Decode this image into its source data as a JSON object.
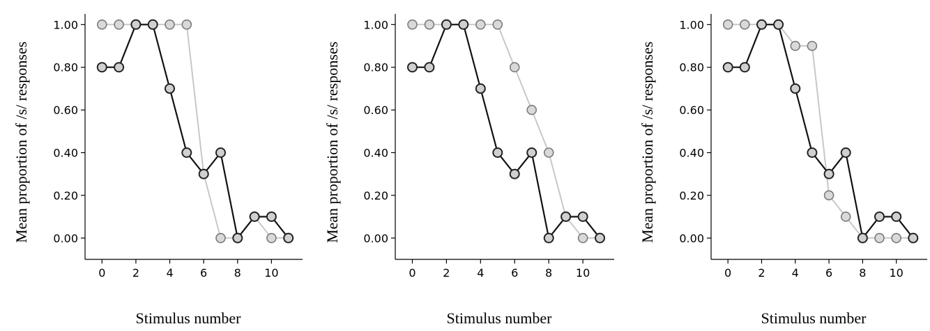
{
  "chart_data": [
    {
      "type": "line",
      "xlabel": "Stimulus number",
      "ylabel": "Mean proportion of /s/ responses",
      "xlim": [
        -1,
        12
      ],
      "ylim": [
        -0.1,
        1.05
      ],
      "x_ticks": [
        0,
        2,
        4,
        6,
        8,
        10
      ],
      "y_ticks": [
        0,
        0.2,
        0.4,
        0.6,
        0.8,
        1.0
      ],
      "x_tick_labels": [
        "0",
        "2",
        "4",
        "6",
        "8",
        "10"
      ],
      "y_tick_labels": [
        "0.00",
        "0.20",
        "0.40",
        "0.60",
        "0.80",
        "1.00"
      ],
      "x": [
        0,
        1,
        2,
        3,
        4,
        5,
        6,
        7,
        8,
        9,
        10,
        11
      ],
      "series": [
        {
          "color": "#c8c8c8",
          "values": [
            1.0,
            1.0,
            1.0,
            1.0,
            1.0,
            1.0,
            0.3,
            0.0,
            0.0,
            0.1,
            0.0,
            0.0
          ]
        },
        {
          "color": "#111111",
          "values": [
            0.8,
            0.8,
            1.0,
            1.0,
            0.7,
            0.4,
            0.3,
            0.4,
            0.0,
            0.1,
            0.1,
            0.0
          ]
        }
      ]
    },
    {
      "type": "line",
      "xlabel": "Stimulus number",
      "ylabel": "Mean proportion of /s/ responses",
      "xlim": [
        -1,
        12
      ],
      "ylim": [
        -0.1,
        1.05
      ],
      "x_ticks": [
        0,
        2,
        4,
        6,
        8,
        10
      ],
      "y_ticks": [
        0,
        0.2,
        0.4,
        0.6,
        0.8,
        1.0
      ],
      "x_tick_labels": [
        "0",
        "2",
        "4",
        "6",
        "8",
        "10"
      ],
      "y_tick_labels": [
        "0.00",
        "0.20",
        "0.40",
        "0.60",
        "0.80",
        "1.00"
      ],
      "x": [
        0,
        1,
        2,
        3,
        4,
        5,
        6,
        7,
        8,
        9,
        10,
        11
      ],
      "series": [
        {
          "color": "#c8c8c8",
          "values": [
            1.0,
            1.0,
            1.0,
            1.0,
            1.0,
            1.0,
            0.8,
            0.6,
            0.4,
            0.1,
            0.0,
            0.0
          ]
        },
        {
          "color": "#111111",
          "values": [
            0.8,
            0.8,
            1.0,
            1.0,
            0.7,
            0.4,
            0.3,
            0.4,
            0.0,
            0.1,
            0.1,
            0.0
          ]
        }
      ]
    },
    {
      "type": "line",
      "xlabel": "Stimulus number",
      "ylabel": "Mean proportion of /s/ responses",
      "xlim": [
        -1,
        12
      ],
      "ylim": [
        -0.1,
        1.05
      ],
      "x_ticks": [
        0,
        2,
        4,
        6,
        8,
        10
      ],
      "y_ticks": [
        0,
        0.2,
        0.4,
        0.6,
        0.8,
        1.0
      ],
      "x_tick_labels": [
        "0",
        "2",
        "4",
        "6",
        "8",
        "10"
      ],
      "y_tick_labels": [
        "0.00",
        "0.20",
        "0.40",
        "0.60",
        "0.80",
        "1.00"
      ],
      "x": [
        0,
        1,
        2,
        3,
        4,
        5,
        6,
        7,
        8,
        9,
        10,
        11
      ],
      "series": [
        {
          "color": "#c8c8c8",
          "values": [
            1.0,
            1.0,
            1.0,
            1.0,
            0.9,
            0.9,
            0.2,
            0.1,
            0.0,
            0.0,
            0.0,
            0.0
          ]
        },
        {
          "color": "#111111",
          "values": [
            0.8,
            0.8,
            1.0,
            1.0,
            0.7,
            0.4,
            0.3,
            0.4,
            0.0,
            0.1,
            0.1,
            0.0
          ]
        }
      ]
    }
  ]
}
